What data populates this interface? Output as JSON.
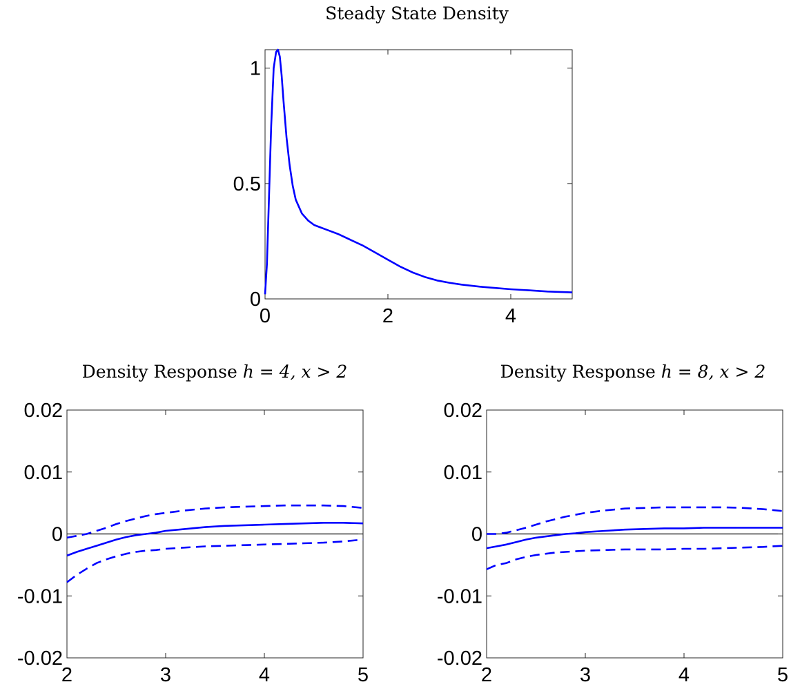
{
  "chart_data": [
    {
      "type": "line",
      "title": "Steady State Density",
      "xlabel": "",
      "ylabel": "",
      "xlim": [
        0,
        5
      ],
      "ylim": [
        0,
        1.08
      ],
      "xticks": [
        0,
        2,
        4
      ],
      "xtick_labels": [
        "0",
        "2",
        "4"
      ],
      "yticks": [
        0,
        0.5,
        1
      ],
      "ytick_labels": [
        "0",
        "0.5",
        "1"
      ],
      "grid": false,
      "colors": {
        "line": "#0000ff"
      },
      "series": [
        {
          "style": "solid",
          "x": [
            0,
            0.03,
            0.06,
            0.1,
            0.14,
            0.18,
            0.21,
            0.24,
            0.27,
            0.3,
            0.35,
            0.4,
            0.45,
            0.5,
            0.6,
            0.7,
            0.8,
            0.9,
            1.0,
            1.2,
            1.4,
            1.6,
            1.8,
            2.0,
            2.2,
            2.4,
            2.6,
            2.8,
            3.0,
            3.2,
            3.5,
            3.8,
            4.0,
            4.3,
            4.6,
            5.0
          ],
          "y": [
            0.02,
            0.15,
            0.4,
            0.75,
            1.0,
            1.07,
            1.08,
            1.05,
            0.97,
            0.86,
            0.7,
            0.58,
            0.49,
            0.43,
            0.37,
            0.34,
            0.32,
            0.31,
            0.3,
            0.28,
            0.255,
            0.23,
            0.2,
            0.17,
            0.14,
            0.115,
            0.095,
            0.08,
            0.07,
            0.062,
            0.053,
            0.046,
            0.042,
            0.037,
            0.032,
            0.028
          ]
        }
      ]
    },
    {
      "type": "line",
      "title": "Density Response ",
      "title_math": "h = 4, x > 2",
      "xlabel": "",
      "ylabel": "",
      "xlim": [
        2,
        5
      ],
      "ylim": [
        -0.02,
        0.02
      ],
      "xticks": [
        2,
        3,
        4,
        5
      ],
      "xtick_labels": [
        "2",
        "3",
        "4",
        "5"
      ],
      "yticks": [
        -0.02,
        -0.01,
        0,
        0.01,
        0.02
      ],
      "ytick_labels": [
        "-0.02",
        "-0.01",
        "0",
        "0.01",
        "0.02"
      ],
      "grid": false,
      "zero_line": true,
      "colors": {
        "line": "#0000ff",
        "zero": "#000000"
      },
      "series": [
        {
          "style": "solid",
          "x": [
            2.0,
            2.1,
            2.2,
            2.3,
            2.4,
            2.5,
            2.6,
            2.7,
            2.8,
            2.9,
            3.0,
            3.2,
            3.4,
            3.6,
            3.8,
            4.0,
            4.2,
            4.4,
            4.6,
            4.8,
            5.0
          ],
          "y": [
            -0.0035,
            -0.0029,
            -0.0024,
            -0.0019,
            -0.0014,
            -0.0009,
            -0.0005,
            -0.0002,
            0.0,
            0.0002,
            0.0005,
            0.0008,
            0.0011,
            0.0013,
            0.0014,
            0.0015,
            0.0016,
            0.0017,
            0.0018,
            0.0018,
            0.0017
          ]
        },
        {
          "style": "dashed",
          "x": [
            2.0,
            2.1,
            2.2,
            2.3,
            2.4,
            2.5,
            2.6,
            2.7,
            2.8,
            2.9,
            3.0,
            3.2,
            3.4,
            3.6,
            3.8,
            4.0,
            4.2,
            4.4,
            4.6,
            4.8,
            5.0
          ],
          "y": [
            -0.0006,
            -0.0003,
            0.0,
            0.0005,
            0.001,
            0.0016,
            0.0021,
            0.0025,
            0.0029,
            0.0032,
            0.0034,
            0.0038,
            0.0041,
            0.0043,
            0.0044,
            0.0045,
            0.0046,
            0.0046,
            0.0046,
            0.0045,
            0.0042
          ]
        },
        {
          "style": "dashed",
          "x": [
            2.0,
            2.1,
            2.2,
            2.3,
            2.4,
            2.5,
            2.6,
            2.7,
            2.8,
            2.9,
            3.0,
            3.2,
            3.4,
            3.6,
            3.8,
            4.0,
            4.2,
            4.4,
            4.6,
            4.8,
            5.0
          ],
          "y": [
            -0.0078,
            -0.0066,
            -0.0056,
            -0.0047,
            -0.0041,
            -0.0036,
            -0.0032,
            -0.0029,
            -0.0027,
            -0.0026,
            -0.0024,
            -0.0022,
            -0.002,
            -0.0019,
            -0.0018,
            -0.0017,
            -0.0016,
            -0.0015,
            -0.0014,
            -0.0012,
            -0.0009
          ]
        }
      ]
    },
    {
      "type": "line",
      "title": "Density Response ",
      "title_math": "h = 8, x > 2",
      "xlabel": "",
      "ylabel": "",
      "xlim": [
        2,
        5
      ],
      "ylim": [
        -0.02,
        0.02
      ],
      "xticks": [
        2,
        3,
        4,
        5
      ],
      "xtick_labels": [
        "2",
        "3",
        "4",
        "5"
      ],
      "yticks": [
        -0.02,
        -0.01,
        0,
        0.01,
        0.02
      ],
      "ytick_labels": [
        "-0.02",
        "-0.01",
        "0",
        "0.01",
        "0.02"
      ],
      "grid": false,
      "zero_line": true,
      "colors": {
        "line": "#0000ff",
        "zero": "#000000"
      },
      "series": [
        {
          "style": "solid",
          "x": [
            2.0,
            2.1,
            2.2,
            2.3,
            2.4,
            2.5,
            2.6,
            2.7,
            2.8,
            2.9,
            3.0,
            3.2,
            3.4,
            3.6,
            3.8,
            4.0,
            4.2,
            4.4,
            4.6,
            4.8,
            5.0
          ],
          "y": [
            -0.0023,
            -0.002,
            -0.0017,
            -0.0013,
            -0.0009,
            -0.0006,
            -0.0004,
            -0.0002,
            0.0,
            0.0001,
            0.0003,
            0.0005,
            0.0007,
            0.0008,
            0.0009,
            0.0009,
            0.001,
            0.001,
            0.001,
            0.001,
            0.001
          ]
        },
        {
          "style": "dashed",
          "x": [
            2.0,
            2.1,
            2.2,
            2.3,
            2.4,
            2.5,
            2.6,
            2.7,
            2.8,
            2.9,
            3.0,
            3.2,
            3.4,
            3.6,
            3.8,
            4.0,
            4.2,
            4.4,
            4.6,
            4.8,
            5.0
          ],
          "y": [
            0.0,
            0.0,
            0.0002,
            0.0006,
            0.001,
            0.0015,
            0.002,
            0.0024,
            0.0028,
            0.0031,
            0.0034,
            0.0038,
            0.0041,
            0.0042,
            0.0043,
            0.0043,
            0.0043,
            0.0043,
            0.0042,
            0.004,
            0.0037
          ]
        },
        {
          "style": "dashed",
          "x": [
            2.0,
            2.1,
            2.2,
            2.3,
            2.4,
            2.5,
            2.6,
            2.7,
            2.8,
            2.9,
            3.0,
            3.2,
            3.4,
            3.6,
            3.8,
            4.0,
            4.2,
            4.4,
            4.6,
            4.8,
            5.0
          ],
          "y": [
            -0.0057,
            -0.005,
            -0.0047,
            -0.0041,
            -0.0037,
            -0.0034,
            -0.0032,
            -0.003,
            -0.0029,
            -0.0028,
            -0.0027,
            -0.0026,
            -0.0025,
            -0.0025,
            -0.0025,
            -0.0024,
            -0.0024,
            -0.0023,
            -0.0022,
            -0.0021,
            -0.0019
          ]
        }
      ]
    }
  ]
}
